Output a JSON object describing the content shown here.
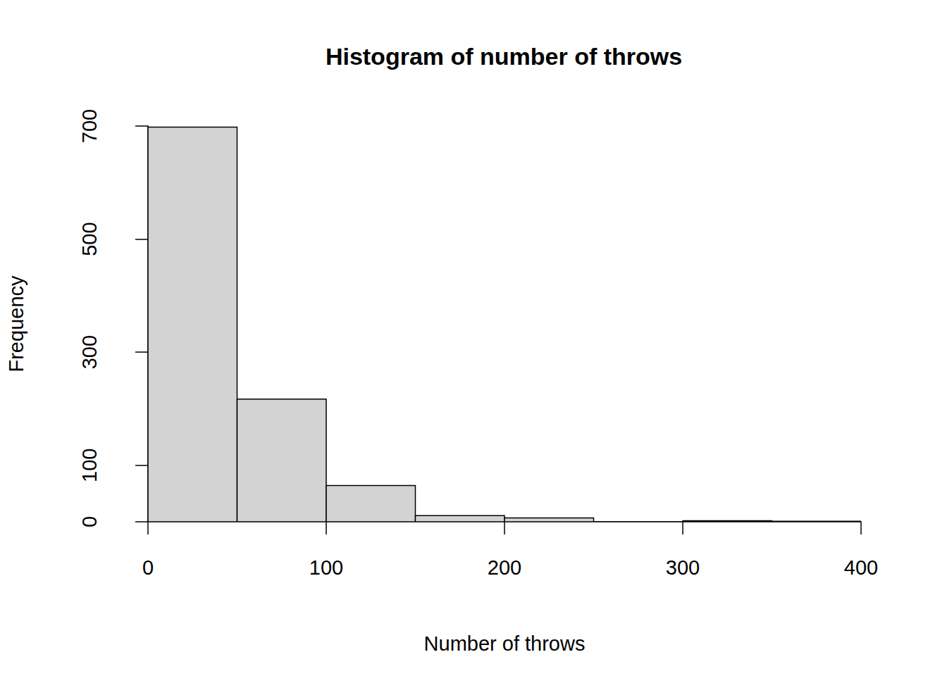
{
  "chart_data": {
    "type": "histogram",
    "title": "Histogram of number of throws",
    "x_label": "Number of throws",
    "y_label": "Frequency",
    "bins": [
      0,
      50,
      100,
      150,
      200,
      250,
      300,
      350,
      400
    ],
    "values": [
      698,
      217,
      64,
      11,
      7,
      0,
      2,
      1
    ],
    "color": "#d3d3d3",
    "xlim": [
      0,
      400
    ],
    "xticks": [
      0,
      100,
      200,
      300,
      400
    ],
    "ylim": [
      0,
      700
    ],
    "yticks": [
      0,
      100,
      300,
      500,
      700
    ],
    "grid": false
  }
}
